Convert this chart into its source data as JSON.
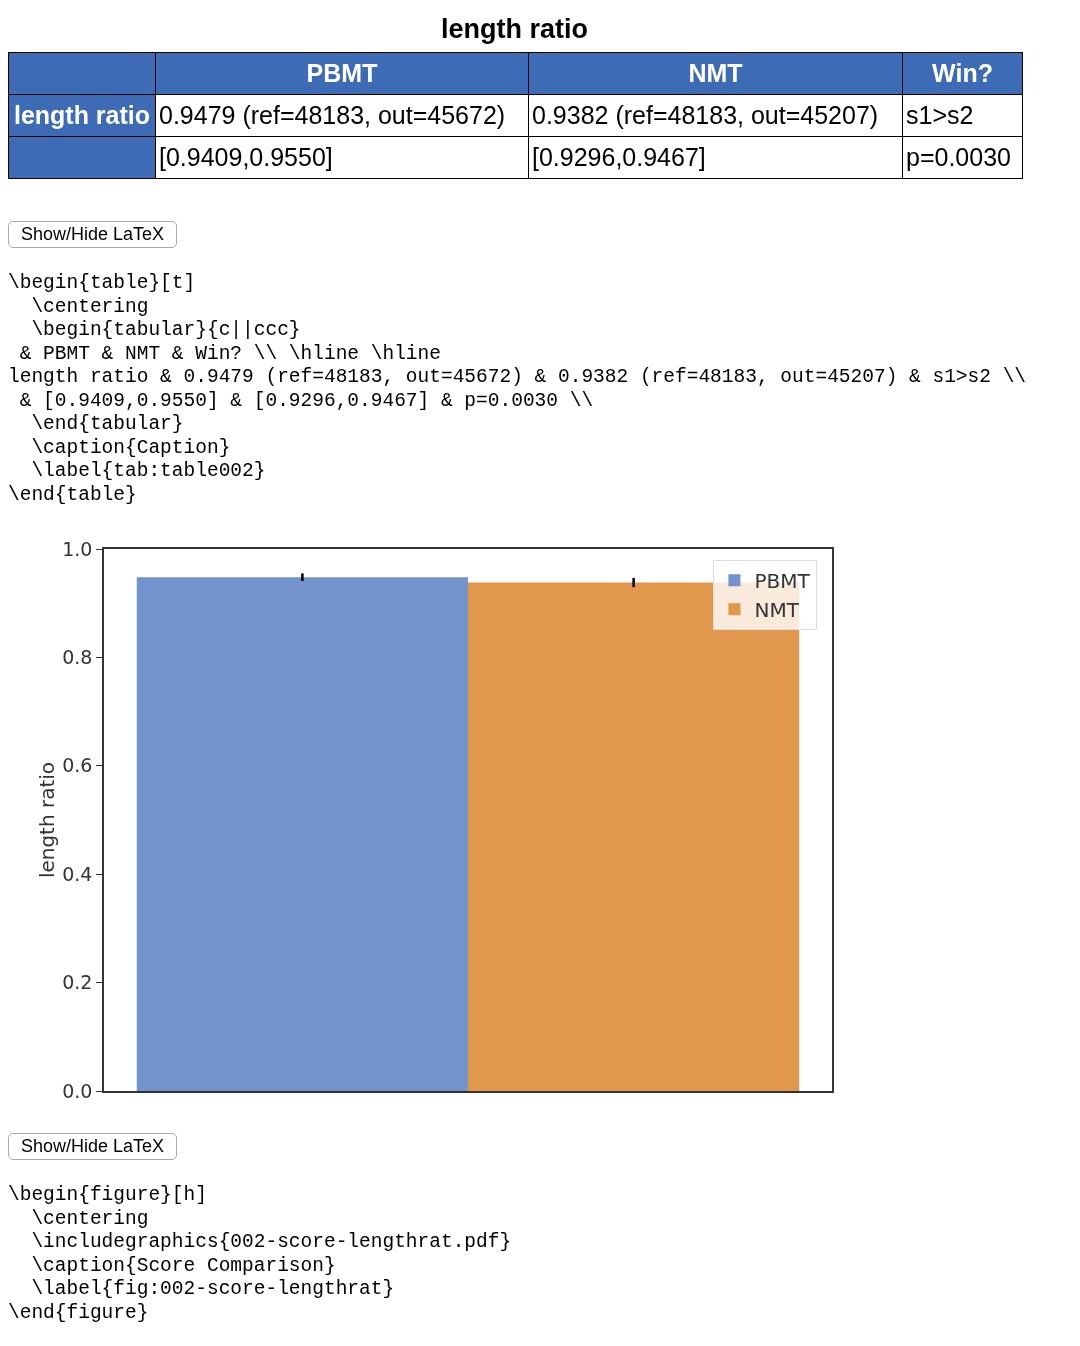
{
  "chart_data": {
    "type": "bar",
    "title": "length ratio",
    "ylabel": "length ratio",
    "categories": [
      null
    ],
    "series": [
      {
        "name": "PBMT",
        "color": "#7293cb",
        "values": [
          0.9479
        ],
        "errors": [
          [
            0.9409,
            0.955
          ]
        ]
      },
      {
        "name": "NMT",
        "color": "#e1974c",
        "values": [
          0.9382
        ],
        "errors": [
          [
            0.9296,
            0.9467
          ]
        ]
      }
    ],
    "ylim": [
      0,
      1.0
    ],
    "yticks": [
      {
        "value": 0,
        "label": "0.0"
      },
      {
        "value": 0.2,
        "label": "0.2"
      },
      {
        "value": 0.4,
        "label": "0.4"
      },
      {
        "value": 0.6,
        "label": "0.6"
      },
      {
        "value": 0.8,
        "label": "0.8"
      },
      {
        "value": 1,
        "label": "1.0"
      }
    ],
    "grid": false,
    "legend": "top right",
    "tick_labels": "y",
    "annotations": [
      "Win?",
      "length ratio",
      "0.9479 (ref=48183, out=45672)",
      "0.9382 (ref=48183, out=45207)",
      "s1>s2",
      "[0.9409,0.9550]",
      "[0.9296,0.9467]",
      "p=0.0030",
      "Show/Hide LaTeX",
      "\\begin{table}[t]\n  \\centering\n  \\begin{tabular}{c||ccc}\n & PBMT & NMT & Win? \\\\ \\hline \\hline\nlength ratio & 0.9479 (ref=48183, out=45672) & 0.9382 (ref=48183, out=45207) & s1>s2 \\\\\n & [0.9409,0.9550] & [0.9296,0.9467] & p=0.0030 \\\\\n  \\end{tabular}\n  \\caption{Caption}\n  \\label{tab:table002}\n\\end{table}",
      "Show/Hide LaTeX",
      "\\begin{figure}[h]\n  \\centering\n  \\includegraphics{002-score-lengthrat.pdf}\n  \\caption{Score Comparison}\n  \\label{fig:002-score-lengthrat}\n\\end{figure}"
    ]
  }
}
